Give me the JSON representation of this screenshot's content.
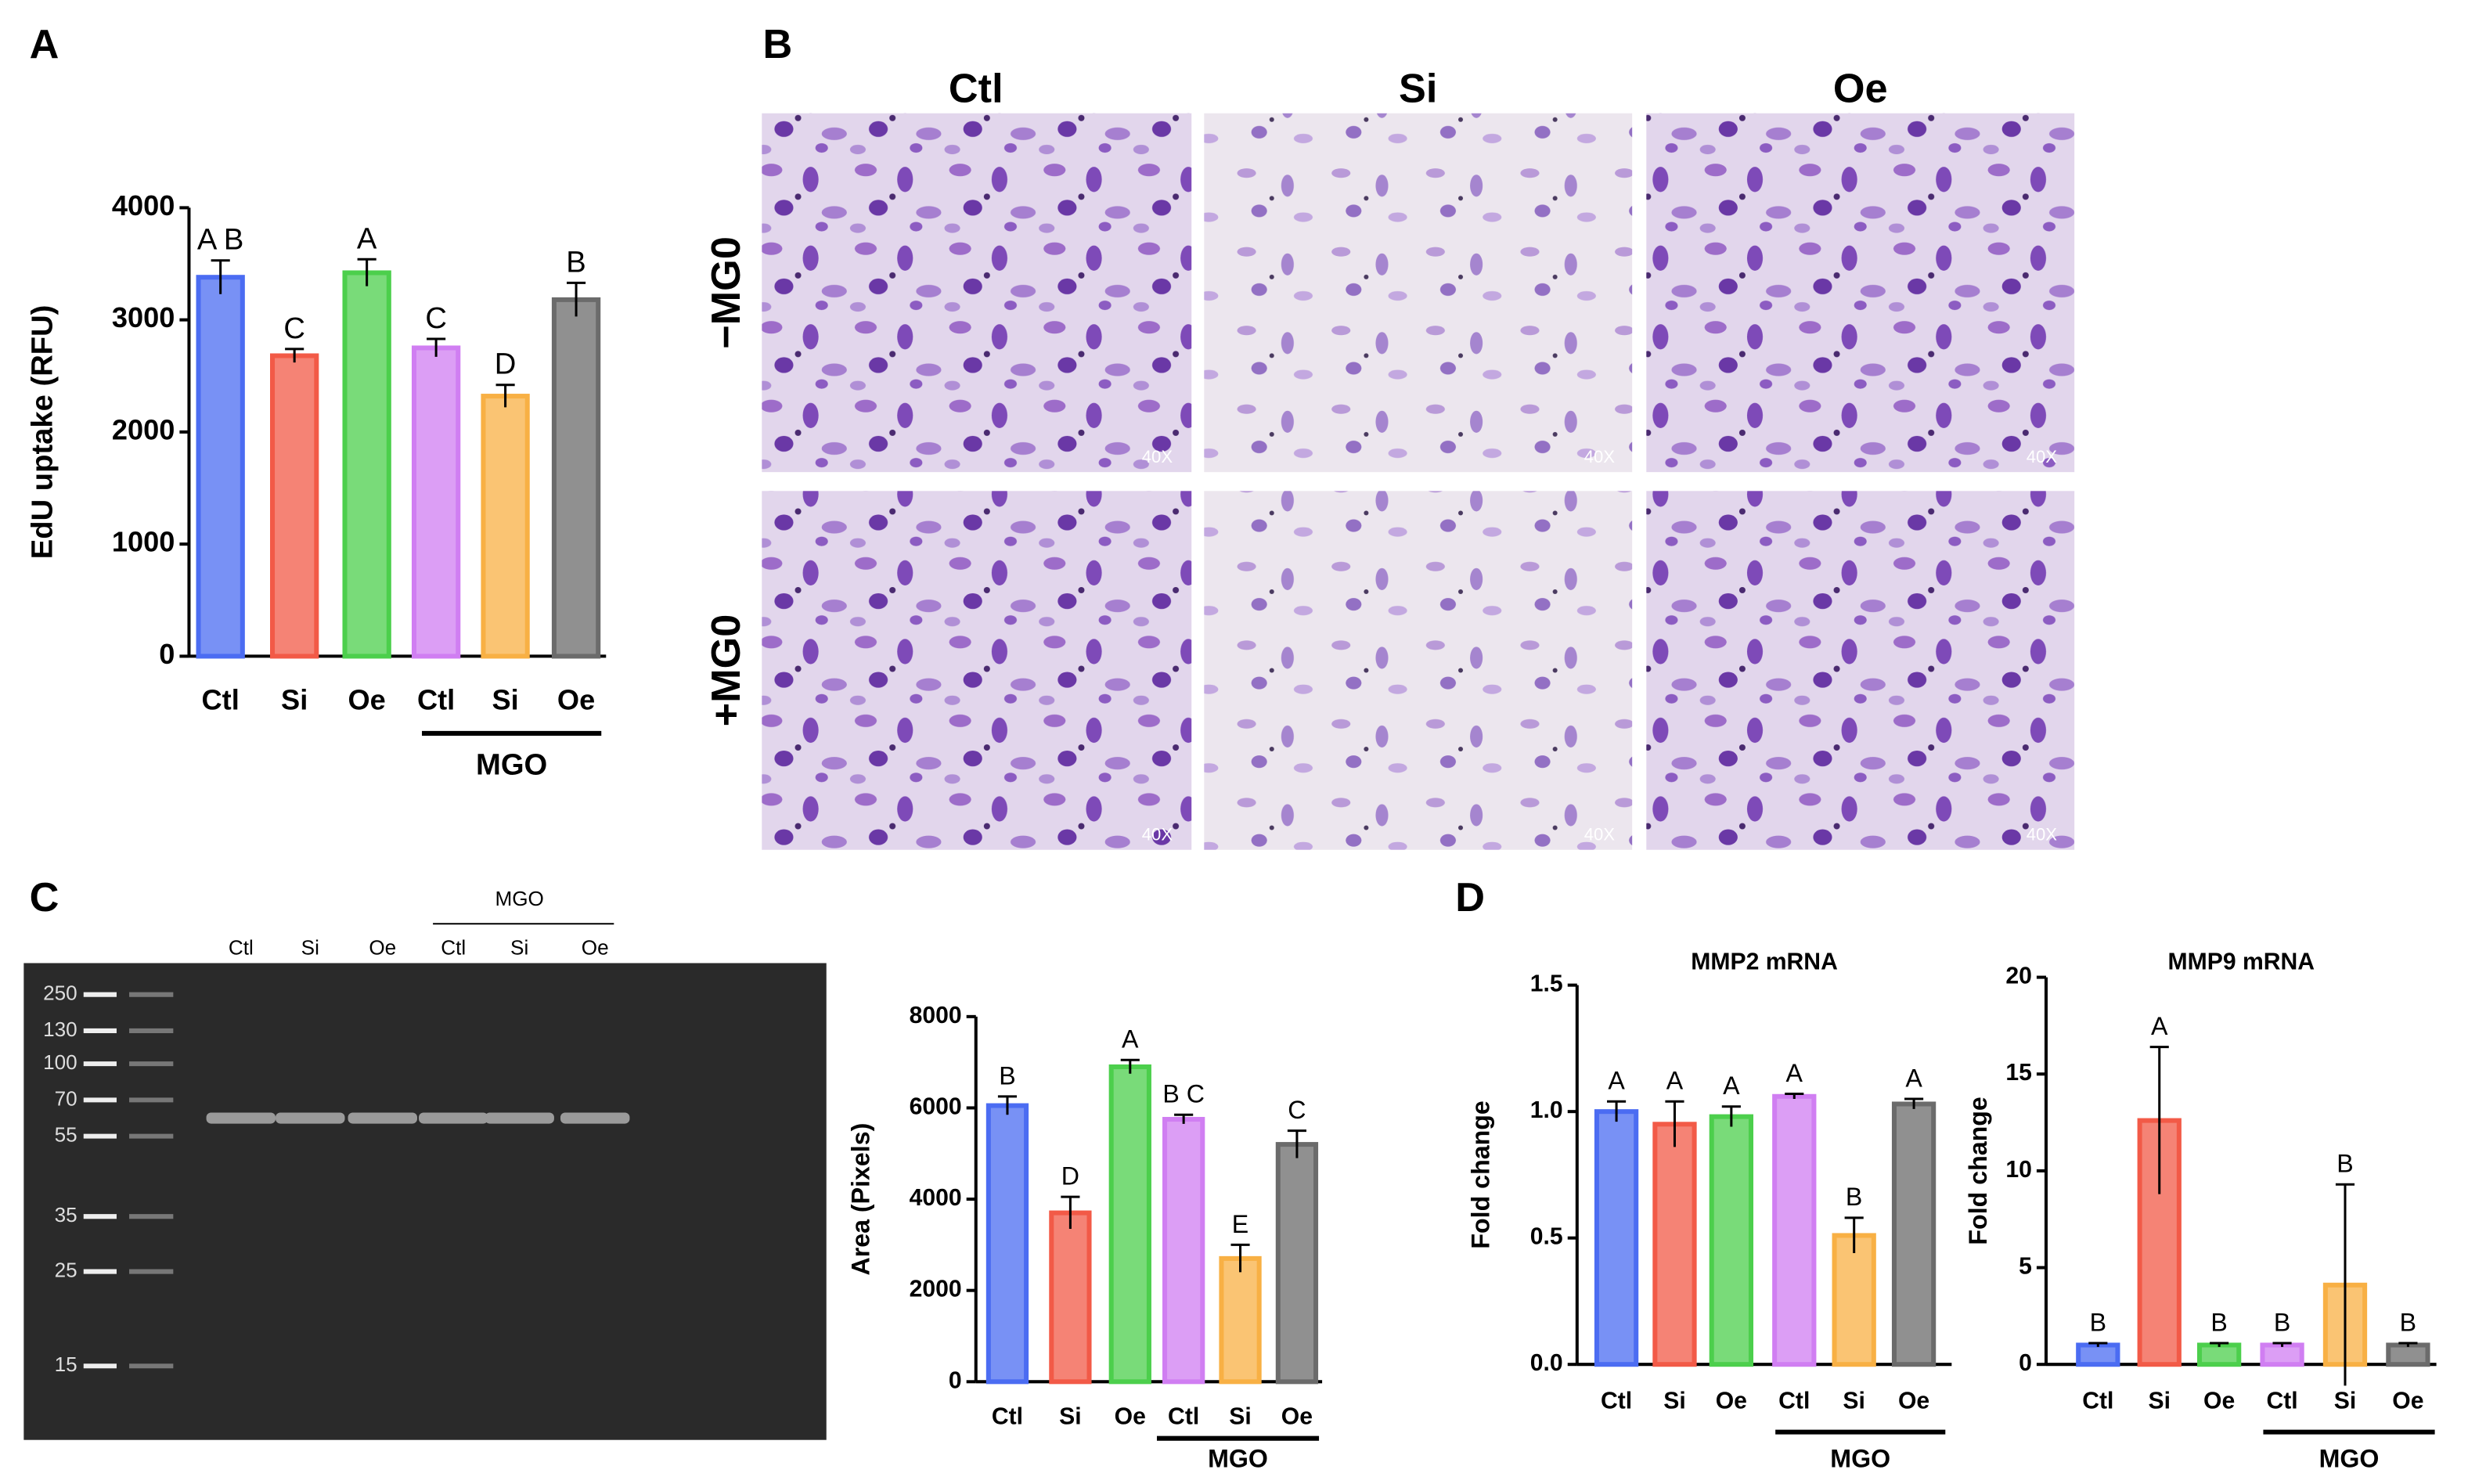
{
  "panel_labels": [
    "A",
    "B",
    "C",
    "D"
  ],
  "micrographs": {
    "columns": [
      "Ctl",
      "Si",
      "Oe"
    ],
    "rows": [
      "−MG0",
      "+MG0"
    ],
    "magnification": "40X"
  },
  "gel": {
    "ladder": [
      "250",
      "130",
      "100",
      "70",
      "55",
      "35",
      "25",
      "15"
    ],
    "lanes": [
      "Ctl",
      "Si",
      "Oe",
      "Ctl",
      "Si",
      "Oe"
    ],
    "group_label": "MGO"
  },
  "chart_data": [
    {
      "type": "bar",
      "ylabel": "EdU uptake (RFU)",
      "categories": [
        "Ctl",
        "Si",
        "Oe",
        "Ctl",
        "Si",
        "Oe"
      ],
      "values": [
        3380,
        2680,
        3420,
        2750,
        2320,
        3180
      ],
      "errors": [
        150,
        60,
        120,
        80,
        100,
        150
      ],
      "annotations": [
        "A B",
        "C",
        "A",
        "C",
        "D",
        "B"
      ],
      "colors": [
        "#4b6cf2",
        "#f25a47",
        "#4ccf4c",
        "#d07ef2",
        "#f8b044",
        "#6b6b6b"
      ],
      "group_label": "MGO",
      "ylim": [
        0,
        4000
      ],
      "yticks": [
        0,
        1000,
        2000,
        3000,
        4000
      ]
    },
    {
      "type": "bar",
      "ylabel": "Area (Pixels)",
      "categories": [
        "Ctl",
        "Si",
        "Oe",
        "Ctl",
        "Si",
        "Oe"
      ],
      "values": [
        6050,
        3700,
        6900,
        5750,
        2700,
        5200
      ],
      "errors": [
        200,
        350,
        150,
        100,
        300,
        300
      ],
      "annotations": [
        "B",
        "D",
        "A",
        "B C",
        "E",
        "C"
      ],
      "colors": [
        "#4b6cf2",
        "#f25a47",
        "#4ccf4c",
        "#d07ef2",
        "#f8b044",
        "#6b6b6b"
      ],
      "group_label": "MGO",
      "ylim": [
        0,
        8000
      ],
      "yticks": [
        0,
        2000,
        4000,
        6000,
        8000
      ]
    },
    {
      "type": "bar",
      "title": "MMP2 mRNA",
      "ylabel": "Fold change",
      "categories": [
        "Ctl",
        "Si",
        "Oe",
        "Ctl",
        "Si",
        "Oe"
      ],
      "values": [
        1.0,
        0.95,
        0.98,
        1.06,
        0.51,
        1.03
      ],
      "errors": [
        0.04,
        0.09,
        0.04,
        0.01,
        0.07,
        0.02
      ],
      "annotations": [
        "A",
        "A",
        "A",
        "A",
        "B",
        "A"
      ],
      "colors": [
        "#4b6cf2",
        "#f25a47",
        "#4ccf4c",
        "#d07ef2",
        "#f8b044",
        "#6b6b6b"
      ],
      "group_label": "MGO",
      "ylim": [
        0,
        1.5
      ],
      "yticks": [
        {
          "value": 0,
          "label": "0.0"
        },
        {
          "value": 0.5,
          "label": "0.5"
        },
        {
          "value": 1,
          "label": "1.0"
        },
        {
          "value": 1.5,
          "label": "1.5"
        }
      ]
    },
    {
      "type": "bar",
      "title": "MMP9 mRNA",
      "ylabel": "Fold change",
      "categories": [
        "Ctl",
        "Si",
        "Oe",
        "Ctl",
        "Si",
        "Oe"
      ],
      "values": [
        1,
        12.6,
        1,
        1,
        4.1,
        1
      ],
      "errors": [
        0.1,
        3.8,
        0.1,
        0.1,
        5.2,
        0.1
      ],
      "annotations": [
        "B",
        "A",
        "B",
        "B",
        "B",
        "B"
      ],
      "colors": [
        "#4b6cf2",
        "#f25a47",
        "#4ccf4c",
        "#d07ef2",
        "#f8b044",
        "#6b6b6b"
      ],
      "group_label": "MGO",
      "ylim": [
        0,
        20
      ],
      "yticks": [
        0,
        5,
        10,
        15,
        20
      ]
    }
  ]
}
